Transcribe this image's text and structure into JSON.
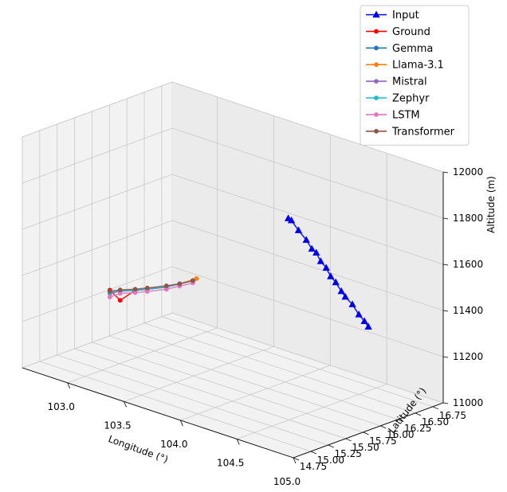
{
  "chart_data": {
    "type": "line3d",
    "xlabel": "Longitude (°)",
    "ylabel": "Latitude (°)",
    "zlabel": "Altitude (m)",
    "xlim": [
      102.6,
      105.0
    ],
    "ylim": [
      14.75,
      16.9
    ],
    "zlim": [
      11000,
      12000
    ],
    "xticks": [
      "103.0",
      "103.5",
      "104.0",
      "104.5",
      "105.0"
    ],
    "yticks": [
      "14.75",
      "15.00",
      "15.25",
      "15.50",
      "15.75",
      "16.00",
      "16.25",
      "16.50",
      "16.75"
    ],
    "zticks": [
      "11000",
      "11200",
      "11400",
      "11600",
      "11800",
      "12000"
    ],
    "grid": true,
    "legend_position": "top-right",
    "series": [
      {
        "name": "Input",
        "color": "#0000ee",
        "marker": "triangle",
        "points": [
          [
            103.64,
            16.88,
            11580
          ],
          [
            103.68,
            16.86,
            11580
          ],
          [
            103.78,
            16.8,
            11560
          ],
          [
            103.88,
            16.75,
            11540
          ],
          [
            103.96,
            16.7,
            11520
          ],
          [
            104.03,
            16.65,
            11520
          ],
          [
            104.1,
            16.6,
            11500
          ],
          [
            104.18,
            16.55,
            11490
          ],
          [
            104.25,
            16.5,
            11470
          ],
          [
            104.32,
            16.46,
            11460
          ],
          [
            104.4,
            16.41,
            11440
          ],
          [
            104.46,
            16.37,
            11430
          ],
          [
            104.56,
            16.31,
            11420
          ],
          [
            104.66,
            16.24,
            11400
          ],
          [
            104.74,
            16.19,
            11390
          ],
          [
            104.8,
            16.15,
            11380
          ]
        ]
      },
      {
        "name": "Ground",
        "color": "#ff0000",
        "marker": "circle",
        "points": [
          [
            103.4,
            15.9,
            11380
          ],
          [
            103.32,
            15.84,
            11360
          ],
          [
            103.24,
            15.78,
            11340
          ],
          [
            103.12,
            15.7,
            11320
          ],
          [
            103.05,
            15.64,
            11310
          ],
          [
            102.96,
            15.57,
            11260
          ],
          [
            102.9,
            15.52,
            11300
          ]
        ]
      },
      {
        "name": "Gemma",
        "color": "#1f77b4",
        "marker": "circle",
        "points": [
          [
            103.4,
            15.9,
            11380
          ],
          [
            103.32,
            15.84,
            11360
          ],
          [
            103.24,
            15.78,
            11340
          ],
          [
            103.12,
            15.7,
            11320
          ],
          [
            103.05,
            15.64,
            11310
          ],
          [
            102.96,
            15.57,
            11300
          ],
          [
            102.9,
            15.52,
            11290
          ]
        ]
      },
      {
        "name": "Llama-3.1",
        "color": "#ff7f0e",
        "marker": "circle",
        "points": [
          [
            103.42,
            15.92,
            11390
          ],
          [
            103.32,
            15.84,
            11360
          ],
          [
            103.24,
            15.78,
            11340
          ],
          [
            103.12,
            15.7,
            11320
          ],
          [
            103.05,
            15.64,
            11310
          ],
          [
            102.96,
            15.57,
            11300
          ],
          [
            102.9,
            15.52,
            11290
          ]
        ]
      },
      {
        "name": "Mistral",
        "color": "#9467bd",
        "marker": "circle",
        "points": [
          [
            103.4,
            15.9,
            11380
          ],
          [
            103.32,
            15.84,
            11360
          ],
          [
            103.24,
            15.78,
            11340
          ],
          [
            103.12,
            15.7,
            11320
          ],
          [
            103.05,
            15.64,
            11310
          ],
          [
            102.96,
            15.57,
            11300
          ],
          [
            102.9,
            15.52,
            11285
          ]
        ]
      },
      {
        "name": "Zephyr",
        "color": "#17becf",
        "marker": "circle",
        "points": [
          [
            103.4,
            15.9,
            11380
          ],
          [
            103.32,
            15.84,
            11360
          ],
          [
            103.24,
            15.78,
            11340
          ],
          [
            103.12,
            15.7,
            11320
          ],
          [
            103.05,
            15.64,
            11310
          ],
          [
            102.96,
            15.57,
            11300
          ],
          [
            102.9,
            15.52,
            11290
          ]
        ]
      },
      {
        "name": "LSTM",
        "color": "#e377c2",
        "marker": "circle",
        "points": [
          [
            103.4,
            15.9,
            11370
          ],
          [
            103.32,
            15.84,
            11350
          ],
          [
            103.24,
            15.78,
            11330
          ],
          [
            103.12,
            15.7,
            11310
          ],
          [
            103.05,
            15.64,
            11300
          ],
          [
            102.96,
            15.57,
            11290
          ],
          [
            102.9,
            15.52,
            11270
          ]
        ]
      },
      {
        "name": "Transformer",
        "color": "#8c564b",
        "marker": "circle",
        "points": [
          [
            103.4,
            15.9,
            11380
          ],
          [
            103.32,
            15.84,
            11360
          ],
          [
            103.24,
            15.78,
            11345
          ],
          [
            103.12,
            15.7,
            11325
          ],
          [
            103.05,
            15.64,
            11315
          ],
          [
            102.96,
            15.57,
            11305
          ],
          [
            102.9,
            15.52,
            11295
          ]
        ]
      }
    ]
  }
}
